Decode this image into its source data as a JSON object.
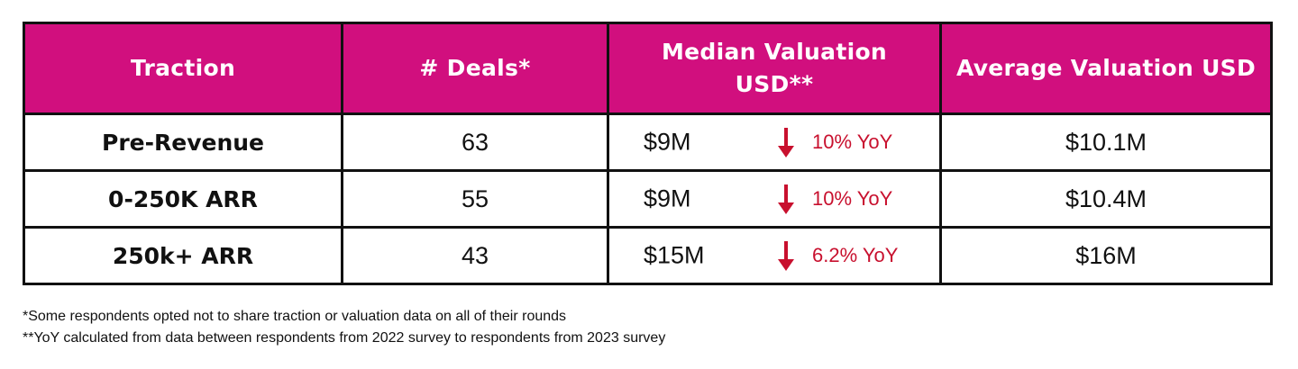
{
  "table": {
    "headers": [
      "Traction",
      "# Deals*",
      "Median Valuation USD**",
      "Average Valuation USD"
    ],
    "header_lines": {
      "median_line1": "Median Valuation",
      "median_line2": "USD**"
    },
    "rows": [
      {
        "traction": "Pre-Revenue",
        "deals": "63",
        "median": "$9M",
        "yoy": "10% YoY",
        "yoy_direction": "down",
        "average": "$10.1M"
      },
      {
        "traction": "0-250K ARR",
        "deals": "55",
        "median": "$9M",
        "yoy": "10% YoY",
        "yoy_direction": "down",
        "average": "$10.4M"
      },
      {
        "traction": "250k+ ARR",
        "deals": "43",
        "median": "$15M",
        "yoy": "6.2% YoY",
        "yoy_direction": "down",
        "average": "$16M"
      }
    ]
  },
  "footnotes": [
    "*Some respondents opted not to share traction or valuation data on all of their rounds",
    "**YoY calculated from data between respondents from 2022 survey to respondents from 2023 survey"
  ],
  "colors": {
    "header_bg": "#d10f7e",
    "header_text": "#ffffff",
    "yoy_red": "#c8102e",
    "border": "#111111"
  },
  "icons": {
    "yoy_arrow": "arrow-down-icon"
  }
}
